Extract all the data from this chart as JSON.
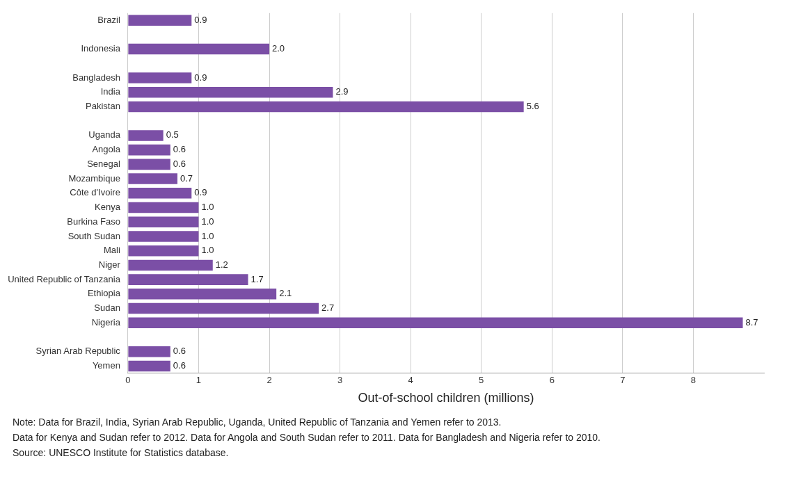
{
  "chart_data": {
    "type": "bar",
    "orientation": "horizontal",
    "categories": [
      "Brazil",
      null,
      "Indonesia",
      null,
      "Bangladesh",
      "India",
      "Pakistan",
      null,
      "Uganda",
      "Angola",
      "Senegal",
      "Mozambique",
      "Côte d'Ivoire",
      "Kenya",
      "Burkina Faso",
      "South Sudan",
      "Mali",
      "Niger",
      "United Republic of Tanzania",
      "Ethiopia",
      "Sudan",
      "Nigeria",
      null,
      "Syrian Arab Republic",
      "Yemen"
    ],
    "values": [
      0.9,
      null,
      2.0,
      null,
      0.9,
      2.9,
      5.6,
      null,
      0.5,
      0.6,
      0.6,
      0.7,
      0.9,
      1.0,
      1.0,
      1.0,
      1.0,
      1.2,
      1.7,
      2.1,
      2.7,
      8.7,
      null,
      0.6,
      0.6
    ],
    "value_labels": [
      "0.9",
      null,
      "2.0",
      null,
      "0.9",
      "2.9",
      "5.6",
      null,
      "0.5",
      "0.6",
      "0.6",
      "0.7",
      "0.9",
      "1.0",
      "1.0",
      "1.0",
      "1.0",
      "1.2",
      "1.7",
      "2.1",
      "2.7",
      "8.7",
      null,
      "0.6",
      "0.6"
    ],
    "color": "#7b4fa6",
    "xlim": [
      0,
      9
    ],
    "xticks": [
      0,
      1,
      2,
      3,
      4,
      5,
      6,
      7,
      8
    ],
    "xlabel": "Out-of-school children (millions)",
    "grid": "x",
    "legend": false,
    "annotations": [
      "Note: Data for Brazil, India, Syrian Arab Republic, Uganda, United Republic of Tanzania and Yemen refer to 2013.",
      "Data for Kenya and Sudan refer to 2012. Data for Angola and South Sudan refer to 2011. Data for Bangladesh and Nigeria refer to 2010.",
      "Source: UNESCO Institute for Statistics database."
    ]
  }
}
